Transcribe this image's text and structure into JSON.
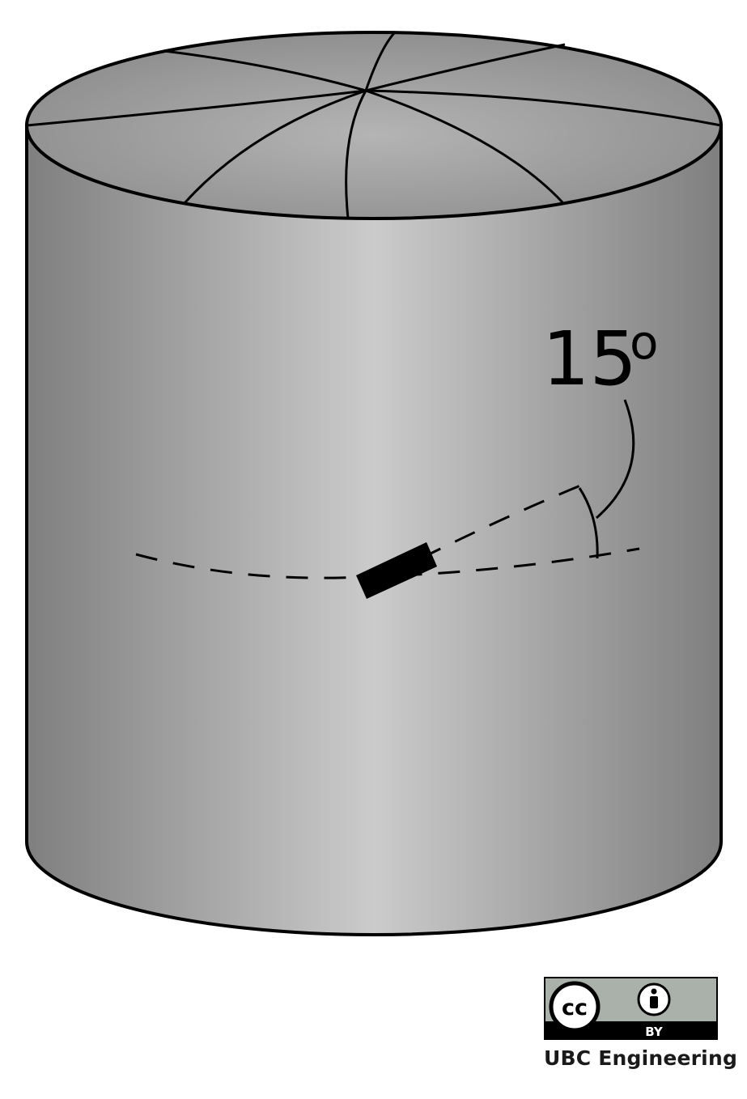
{
  "figure": {
    "angle_label": "15",
    "degree_symbol": "o",
    "license": {
      "cc_text": "cc",
      "by_text": "BY"
    },
    "credit": "UBC Engineering"
  },
  "colors": {
    "cylinder_dark": "#7f7f7f",
    "cylinder_light": "#cbcbcb",
    "top_dark": "#8f8f8f",
    "top_light": "#b8b8b8",
    "outline": "#000000",
    "badge_bg": "#aab0aa",
    "badge_dark": "#000000"
  }
}
